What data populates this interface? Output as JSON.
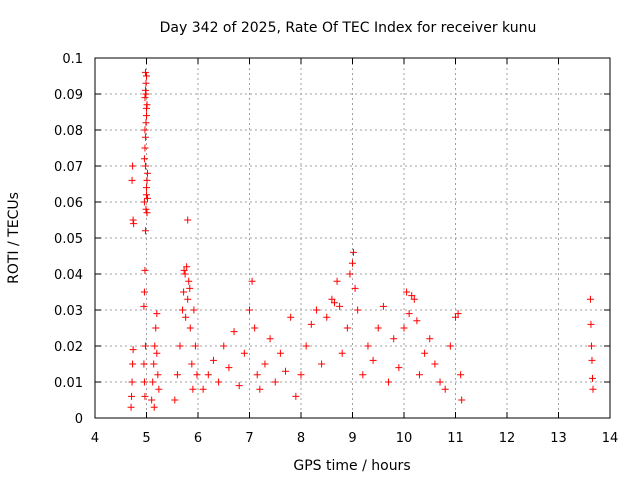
{
  "chart_data": {
    "type": "scatter",
    "title": "Day 342 of 2025, Rate Of TEC Index for receiver kunu",
    "xlabel": "GPS time / hours",
    "ylabel": "ROTI / TECUs",
    "xlim": [
      4,
      14
    ],
    "ylim": [
      0,
      0.1
    ],
    "x_ticks": [
      "4",
      "5",
      "6",
      "7",
      "8",
      "9",
      "10",
      "11",
      "12",
      "13",
      "14"
    ],
    "y_ticks": [
      "0",
      "0.01",
      "0.02",
      "0.03",
      "0.04",
      "0.05",
      "0.06",
      "0.07",
      "0.08",
      "0.09",
      "0.1"
    ],
    "grid": true,
    "marker": "+",
    "marker_color": "#ff0000",
    "series": [
      {
        "x": [
          4.7,
          4.71,
          4.72,
          4.73,
          4.74,
          4.75,
          4.72,
          4.73,
          4.74,
          4.95,
          4.96,
          4.97,
          4.98,
          4.99,
          5.0,
          5.01,
          5.02,
          4.96,
          4.97,
          4.98,
          4.99,
          5.0,
          5.01,
          4.97,
          4.98,
          4.99,
          5.0,
          4.98,
          4.99,
          5.0,
          4.97,
          4.98,
          5.0,
          4.96,
          5.01,
          5.02,
          4.95,
          4.96,
          4.97,
          4.98,
          5.1,
          5.12,
          5.14,
          5.16,
          5.18,
          5.2,
          5.22,
          5.24,
          5.15,
          5.2,
          5.55,
          5.6,
          5.65,
          5.7,
          5.72,
          5.75,
          5.78,
          5.8,
          5.82,
          5.85,
          5.88,
          5.9,
          5.92,
          5.95,
          5.98,
          5.76,
          5.8,
          5.84,
          5.73,
          6.1,
          6.2,
          6.3,
          6.4,
          6.5,
          6.6,
          6.7,
          6.8,
          6.9,
          7.0,
          7.05,
          7.1,
          7.15,
          7.2,
          7.3,
          7.4,
          7.5,
          7.6,
          7.7,
          7.8,
          7.9,
          8.0,
          8.1,
          8.2,
          8.3,
          8.4,
          8.5,
          8.6,
          8.65,
          8.7,
          8.75,
          8.8,
          8.9,
          8.95,
          9.0,
          9.02,
          9.05,
          9.1,
          9.2,
          9.3,
          9.4,
          9.5,
          9.6,
          9.7,
          9.8,
          9.9,
          10.0,
          10.05,
          10.1,
          10.15,
          10.2,
          10.25,
          10.3,
          10.4,
          10.5,
          10.6,
          10.7,
          10.8,
          10.9,
          11.0,
          11.05,
          11.1,
          11.12,
          13.62,
          13.63,
          13.64,
          13.65,
          13.66,
          13.67
        ],
        "y": [
          0.003,
          0.006,
          0.01,
          0.015,
          0.019,
          0.054,
          0.066,
          0.07,
          0.055,
          0.031,
          0.035,
          0.041,
          0.052,
          0.058,
          0.062,
          0.066,
          0.068,
          0.072,
          0.075,
          0.078,
          0.082,
          0.084,
          0.087,
          0.089,
          0.091,
          0.093,
          0.095,
          0.096,
          0.09,
          0.086,
          0.08,
          0.07,
          0.064,
          0.06,
          0.057,
          0.061,
          0.015,
          0.01,
          0.006,
          0.02,
          0.005,
          0.01,
          0.015,
          0.02,
          0.025,
          0.029,
          0.012,
          0.008,
          0.003,
          0.018,
          0.005,
          0.012,
          0.02,
          0.03,
          0.035,
          0.04,
          0.042,
          0.055,
          0.038,
          0.025,
          0.015,
          0.008,
          0.03,
          0.02,
          0.012,
          0.028,
          0.033,
          0.036,
          0.041,
          0.008,
          0.012,
          0.016,
          0.01,
          0.02,
          0.014,
          0.024,
          0.009,
          0.018,
          0.03,
          0.038,
          0.025,
          0.012,
          0.008,
          0.015,
          0.022,
          0.01,
          0.018,
          0.013,
          0.028,
          0.006,
          0.012,
          0.02,
          0.026,
          0.03,
          0.015,
          0.028,
          0.033,
          0.032,
          0.038,
          0.031,
          0.018,
          0.025,
          0.04,
          0.043,
          0.046,
          0.036,
          0.03,
          0.012,
          0.02,
          0.016,
          0.025,
          0.031,
          0.01,
          0.022,
          0.014,
          0.025,
          0.035,
          0.029,
          0.034,
          0.033,
          0.027,
          0.012,
          0.018,
          0.022,
          0.015,
          0.01,
          0.008,
          0.02,
          0.028,
          0.029,
          0.012,
          0.005,
          0.033,
          0.026,
          0.02,
          0.016,
          0.011,
          0.008
        ]
      }
    ]
  }
}
